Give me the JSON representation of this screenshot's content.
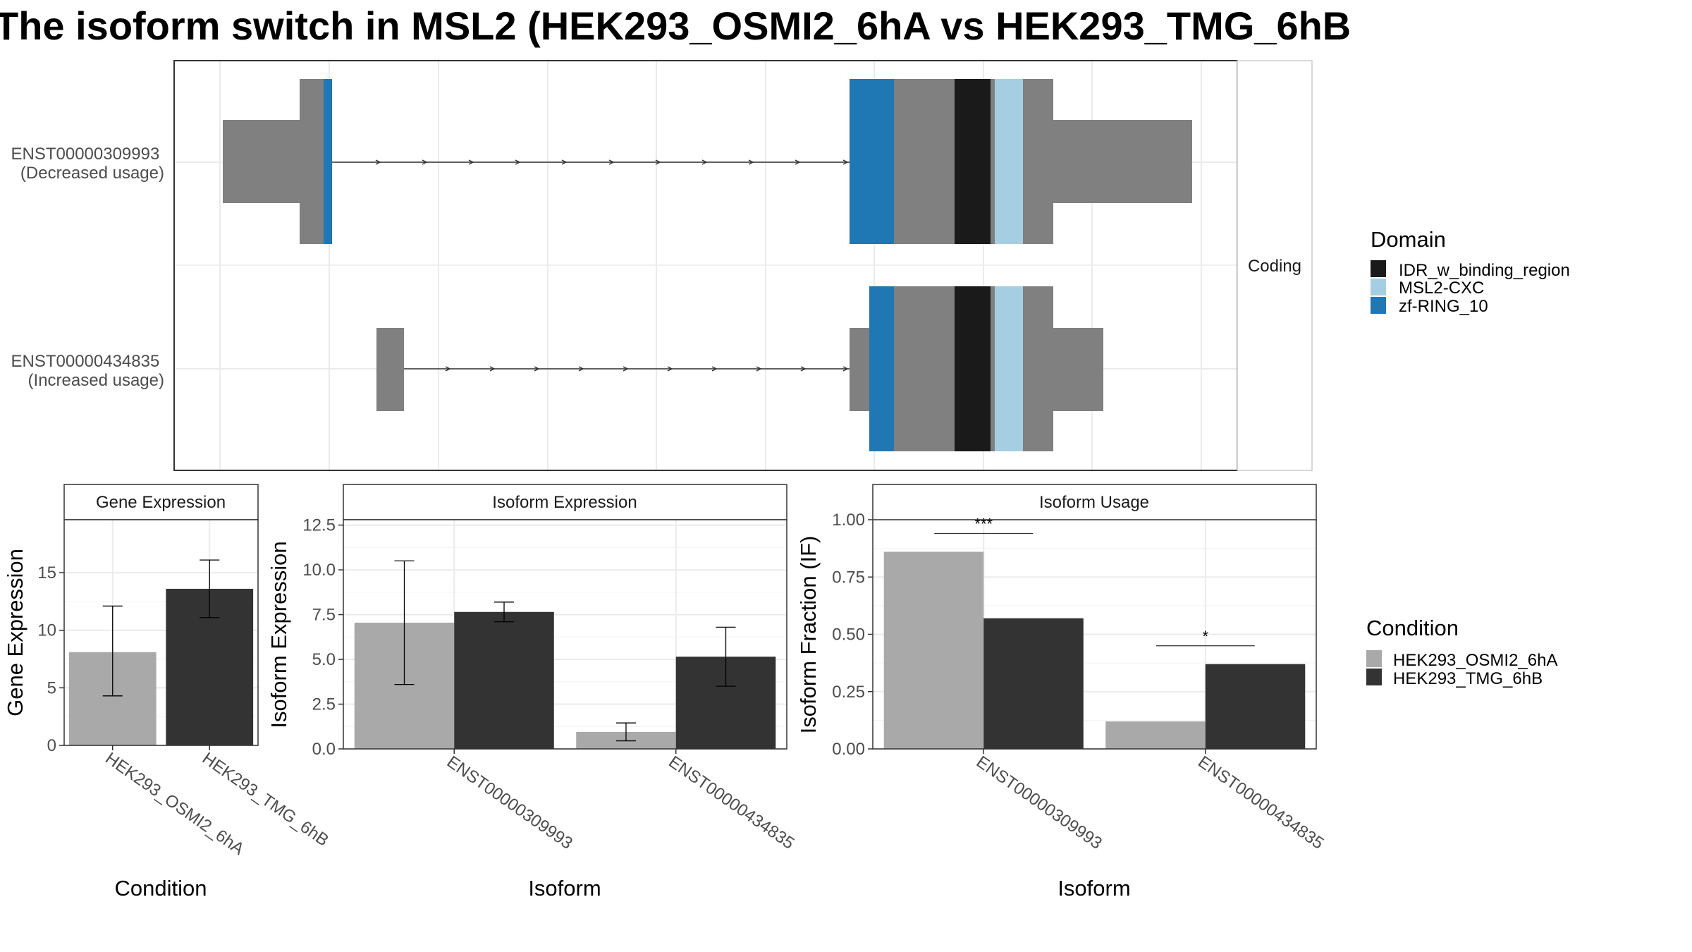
{
  "title": "The isoform switch in MSL2 (HEK293_OSMI2_6hA vs HEK293_TMG_6hB",
  "colors": {
    "condition_a": "#a9a9a9",
    "condition_b": "#333333",
    "exon": "#808080",
    "IDR_w_binding_region": "#1a1a1a",
    "MSL2-CXC": "#a6cee3",
    "zf-RING_10": "#1f78b4"
  },
  "chart_data": [
    {
      "type": "gene-structure",
      "facet_label": "Coding",
      "isoforms": [
        {
          "id": "ENST00000309993",
          "label_line1": "ENST00000309993",
          "label_line2": "(Decreased usage)"
        },
        {
          "id": "ENST00000434835",
          "label_line1": "ENST00000434835",
          "label_line2": "(Increased usage)"
        }
      ],
      "legend": {
        "title": "Domain",
        "entries": [
          "IDR_w_binding_region",
          "MSL2-CXC",
          "zf-RING_10"
        ]
      }
    },
    {
      "type": "bar",
      "panel_title": "Gene Expression",
      "xlabel": "Condition",
      "ylabel": "Gene Expression",
      "ylim": [
        0,
        19.6
      ],
      "yticks": [
        0,
        5,
        10,
        15
      ],
      "categories": [
        "HEK293_OSMI2_6hA",
        "HEK293_TMG_6hB"
      ],
      "values": [
        8.1,
        13.6
      ],
      "errors": [
        [
          4.3,
          12.1
        ],
        [
          11.1,
          16.1
        ]
      ]
    },
    {
      "type": "bar",
      "panel_title": "Isoform Expression",
      "xlabel": "Isoform",
      "ylabel": "Isoform Expression",
      "ylim": [
        0,
        12.8
      ],
      "yticks": [
        0.0,
        2.5,
        5.0,
        7.5,
        10.0,
        12.5
      ],
      "yticklabels": [
        "0.0",
        "2.5",
        "5.0",
        "7.5",
        "10.0",
        "12.5"
      ],
      "categories": [
        "ENST00000309993",
        "ENST00000434835"
      ],
      "series": [
        {
          "name": "HEK293_OSMI2_6hA",
          "values": [
            7.05,
            0.95
          ],
          "errors": [
            [
              3.6,
              10.5
            ],
            [
              0.45,
              1.45
            ]
          ]
        },
        {
          "name": "HEK293_TMG_6hB",
          "values": [
            7.65,
            5.15
          ],
          "errors": [
            [
              7.1,
              8.2
            ],
            [
              3.5,
              6.8
            ]
          ]
        }
      ]
    },
    {
      "type": "bar",
      "panel_title": "Isoform Usage",
      "xlabel": "Isoform",
      "ylabel": "Isoform Fraction (IF)",
      "ylim": [
        0,
        1.0
      ],
      "yticks": [
        0.0,
        0.25,
        0.5,
        0.75,
        1.0
      ],
      "yticklabels": [
        "0.00",
        "0.25",
        "0.50",
        "0.75",
        "1.00"
      ],
      "categories": [
        "ENST00000309993",
        "ENST00000434835"
      ],
      "series": [
        {
          "name": "HEK293_OSMI2_6hA",
          "values": [
            0.86,
            0.12
          ]
        },
        {
          "name": "HEK293_TMG_6hB",
          "values": [
            0.57,
            0.37
          ]
        }
      ],
      "significance": [
        "***",
        "*"
      ]
    }
  ],
  "condition_legend": {
    "title": "Condition",
    "entries": [
      "HEK293_OSMI2_6hA",
      "HEK293_TMG_6hB"
    ]
  }
}
